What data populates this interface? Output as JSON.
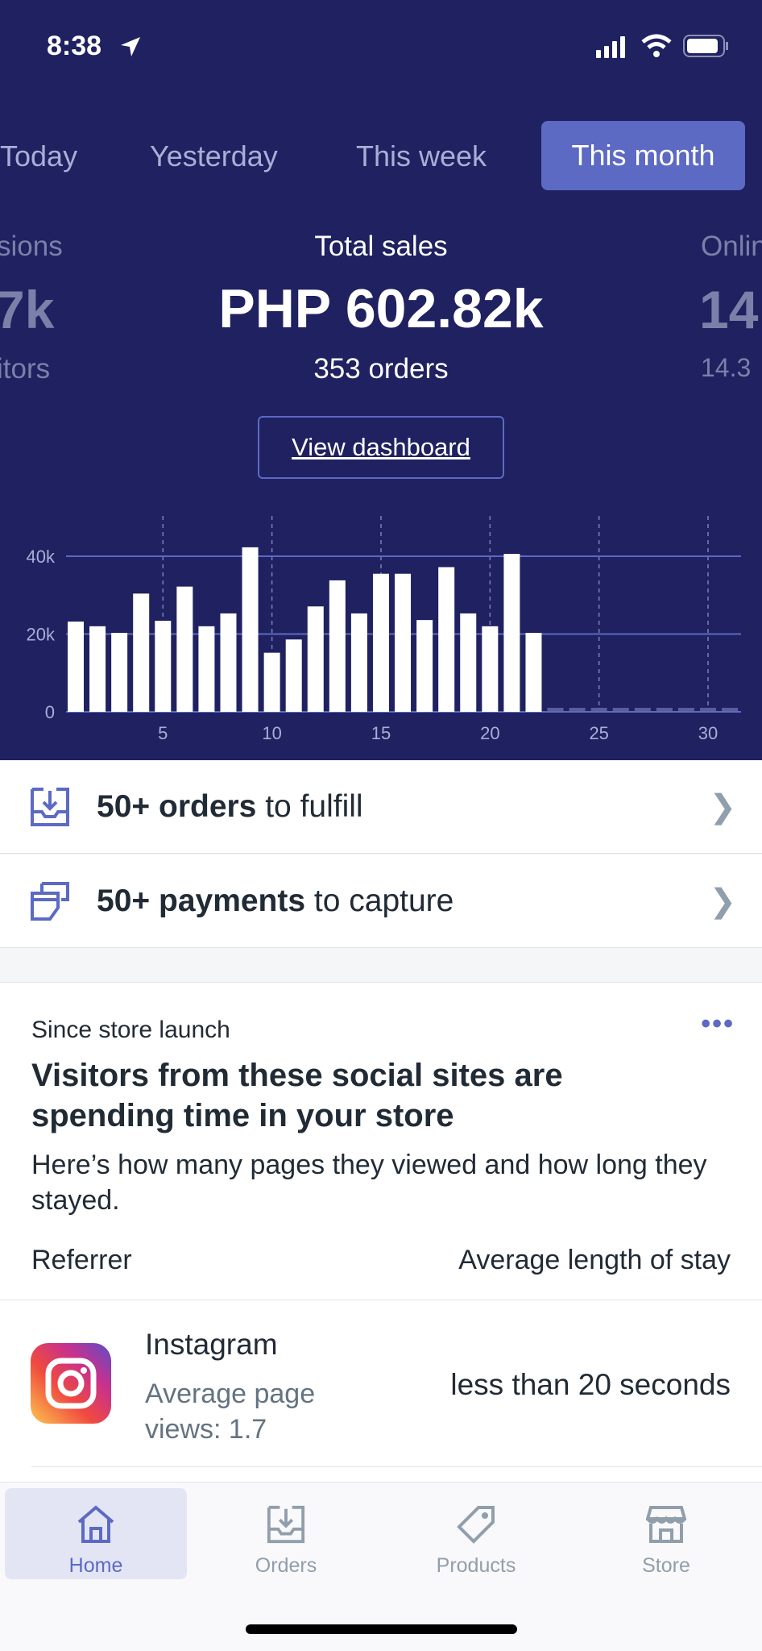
{
  "status_bar": {
    "time": "8:38"
  },
  "period_tabs": [
    {
      "label": "Today"
    },
    {
      "label": "Yesterday"
    },
    {
      "label": "This week"
    },
    {
      "label": "This month",
      "selected": true
    }
  ],
  "metrics": {
    "left": {
      "label": "sions",
      "value": "7k",
      "sub": "itors"
    },
    "main": {
      "label": "Total sales",
      "value": "PHP 602.82k",
      "sub": "353 orders"
    },
    "right": {
      "label": "Onlin",
      "value": "14",
      "sub": "14.3"
    }
  },
  "view_dashboard": "View dashboard",
  "chart_data": {
    "type": "bar",
    "x": [
      1,
      2,
      3,
      4,
      5,
      6,
      7,
      8,
      9,
      10,
      11,
      12,
      13,
      14,
      15,
      16,
      17,
      18,
      19,
      20,
      21,
      22,
      23,
      24,
      25,
      26,
      27,
      28,
      29,
      30,
      31
    ],
    "values": [
      23.2,
      22.0,
      20.3,
      30.4,
      23.4,
      32.2,
      22.0,
      25.3,
      42.3,
      15.2,
      18.6,
      27.1,
      33.8,
      25.3,
      35.5,
      35.5,
      23.6,
      37.2,
      25.3,
      22.0,
      40.6,
      20.3,
      0,
      0,
      0,
      0,
      0,
      0,
      0,
      0,
      0
    ],
    "value_unit": "k",
    "y_ticks": [
      "0",
      "20k",
      "40k"
    ],
    "y_tick_values": [
      0,
      20,
      40
    ],
    "x_ticks": [
      "5",
      "10",
      "15",
      "20",
      "25",
      "30"
    ],
    "x_tick_values": [
      5,
      10,
      15,
      20,
      25,
      30
    ],
    "ylim": [
      0,
      44
    ],
    "grid": true,
    "colors": {
      "bar": "#ffffff",
      "background": "#1f2160",
      "grid": "#5c6ac4"
    }
  },
  "tasks": [
    {
      "bold": "50+ orders",
      "rest": " to fulfill",
      "icon": "inbox-icon"
    },
    {
      "bold": "50+ payments",
      "rest": " to capture",
      "icon": "payment-icon"
    }
  ],
  "card": {
    "eyebrow": "Since store launch",
    "title": "Visitors from these social sites are spending time in your store",
    "description": "Here’s how many pages they viewed and how long they stayed.",
    "col_left": "Referrer",
    "col_right": "Average length of stay",
    "rows": [
      {
        "name": "Instagram",
        "sub": "Average page views: 1.7",
        "stay": "less than 20 seconds"
      }
    ]
  },
  "tabbar": [
    {
      "label": "Home",
      "selected": true
    },
    {
      "label": "Orders"
    },
    {
      "label": "Products"
    },
    {
      "label": "Store"
    }
  ],
  "colors": {
    "accent": "#5c6ac4",
    "hero": "#1f2160"
  }
}
